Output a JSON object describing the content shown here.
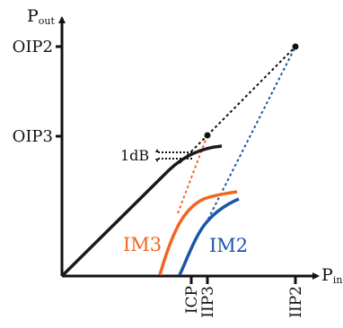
{
  "axes": {
    "y_label_main": "P",
    "y_label_sub": "out",
    "x_label_main": "P",
    "x_label_sub": "in"
  },
  "y_ticks": [
    "OIP2",
    "OIP3"
  ],
  "x_ticks": [
    "ICP",
    "IIP3",
    "IIP2"
  ],
  "annotations": {
    "compression": "1dB"
  },
  "curves": {
    "im3": "IM3",
    "im2": "IM2"
  },
  "colors": {
    "fundamental": "#1a1a1a",
    "im3": "#f26522",
    "im2": "#1a56a8",
    "axis": "#111111"
  }
}
